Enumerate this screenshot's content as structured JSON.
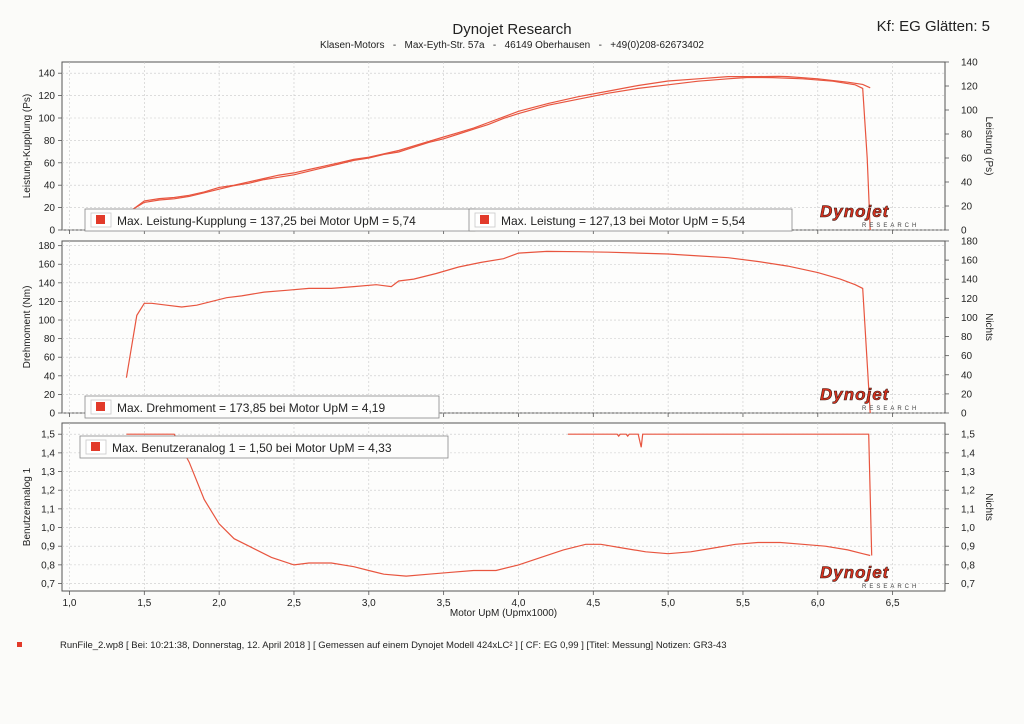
{
  "header": {
    "title": "Dynojet Research",
    "address": {
      "company": "Klasen-Motors",
      "street": "Max-Eyth-Str. 57a",
      "city": "46149 Oberhausen",
      "phone": "+49(0)208-62673402",
      "separator": "-"
    },
    "smoothing": "Kf: EG Glätten: 5"
  },
  "logo": {
    "brand": "Dynojet",
    "sub": "RESEARCH"
  },
  "footer": {
    "text": "RunFile_2.wp8 [ Bei: 10:21:38, Donnerstag, 12. April 2018 ] [ Gemessen auf einem Dynojet Modell 424xLC² ] [ CF: EG 0,99 ] [Titel: Messung]  Notizen: GR3-43"
  },
  "colors": {
    "curve": "#e8553f",
    "grid": "#c8c8c8",
    "legendMarker": "#e23a2a"
  },
  "chart_data": [
    {
      "type": "line",
      "ylabel": "Leistung-Kupplung (Ps)",
      "ylabel_right": "Leistung (Ps)",
      "ylim": [
        0,
        150
      ],
      "yticks_left": [
        "0",
        "20",
        "40",
        "60",
        "80",
        "100",
        "120",
        "140"
      ],
      "ylim_right": [
        0,
        140
      ],
      "yticks_right": [
        "0",
        "20",
        "40",
        "60",
        "80",
        "100",
        "120",
        "140"
      ],
      "legend": [
        "Max. Leistung-Kupplung = 137,25 bei Motor UpM = 5,74",
        "Max. Leistung = 127,13 bei Motor UpM = 5,54"
      ],
      "series": [
        {
          "axis": "left",
          "x": [
            1.32,
            1.42,
            1.5,
            1.6,
            1.7,
            1.8,
            1.9,
            2.0,
            2.1,
            2.2,
            2.3,
            2.4,
            2.5,
            2.6,
            2.7,
            2.8,
            2.9,
            3.0,
            3.1,
            3.2,
            3.3,
            3.4,
            3.5,
            3.6,
            3.7,
            3.8,
            3.9,
            4.0,
            4.2,
            4.4,
            4.6,
            4.8,
            5.0,
            5.2,
            5.4,
            5.6,
            5.74,
            5.8,
            6.0,
            6.2,
            6.3,
            6.35
          ],
          "y": [
            0,
            18,
            26,
            28,
            29,
            31,
            34,
            38,
            40,
            43,
            46,
            49,
            51,
            54,
            57,
            60,
            63,
            65,
            68,
            71,
            75,
            79,
            83,
            87,
            91,
            96,
            101,
            106,
            113,
            119,
            124,
            129,
            133,
            135,
            137,
            137,
            137.25,
            137,
            135,
            132,
            130,
            127
          ]
        },
        {
          "axis": "right",
          "x": [
            1.32,
            1.42,
            1.5,
            1.6,
            1.7,
            1.8,
            1.9,
            2.0,
            2.1,
            2.2,
            2.3,
            2.4,
            2.5,
            2.6,
            2.7,
            2.8,
            2.9,
            3.0,
            3.1,
            3.2,
            3.3,
            3.4,
            3.5,
            3.6,
            3.7,
            3.8,
            3.9,
            4.0,
            4.2,
            4.4,
            4.6,
            4.8,
            5.0,
            5.2,
            5.4,
            5.54,
            5.7,
            5.9,
            6.1,
            6.25,
            6.3,
            6.33,
            6.35
          ],
          "y": [
            0,
            17,
            23,
            25,
            26,
            28,
            31,
            34,
            37,
            39,
            42,
            44,
            46,
            49,
            52,
            55,
            58,
            60,
            63,
            65,
            69,
            73,
            76,
            80,
            84,
            88,
            93,
            97,
            104,
            109,
            114,
            118,
            121,
            124,
            126,
            127.13,
            127,
            126,
            124,
            121,
            118,
            60,
            0
          ]
        }
      ]
    },
    {
      "type": "line",
      "ylabel": "Drehmoment (Nm)",
      "ylabel_right": "Nichts",
      "ylim": [
        0,
        185
      ],
      "yticks_left": [
        "0",
        "20",
        "40",
        "60",
        "80",
        "100",
        "120",
        "140",
        "160",
        "180"
      ],
      "ylim_right": [
        0,
        180
      ],
      "yticks_right": [
        "0",
        "20",
        "40",
        "60",
        "80",
        "100",
        "120",
        "140",
        "160",
        "180"
      ],
      "legend": [
        "Max. Drehmoment = 173,85 bei Motor UpM = 4,19"
      ],
      "series": [
        {
          "axis": "left",
          "x": [
            1.38,
            1.45,
            1.5,
            1.55,
            1.65,
            1.75,
            1.85,
            1.95,
            2.05,
            2.15,
            2.3,
            2.45,
            2.6,
            2.75,
            2.9,
            3.05,
            3.15,
            3.2,
            3.3,
            3.45,
            3.6,
            3.75,
            3.9,
            4.0,
            4.19,
            4.4,
            4.6,
            4.8,
            5.0,
            5.2,
            5.4,
            5.6,
            5.8,
            6.0,
            6.15,
            6.25,
            6.3,
            6.35
          ],
          "y": [
            38,
            105,
            118,
            118,
            116,
            114,
            116,
            120,
            124,
            126,
            130,
            132,
            134,
            134,
            136,
            138,
            136,
            142,
            144,
            150,
            157,
            162,
            166,
            172,
            173.85,
            173.5,
            173,
            172,
            171,
            169,
            167,
            163,
            158,
            151,
            144,
            138,
            134,
            0
          ]
        }
      ]
    },
    {
      "type": "line",
      "ylabel": "Benutzeranalog 1",
      "ylabel_right": "Nichts",
      "xlabel": "Motor UpM (Upmx1000)",
      "xlim": [
        0.95,
        6.85
      ],
      "xticks": [
        "1,0",
        "1,5",
        "2,0",
        "2,5",
        "3,0",
        "3,5",
        "4,0",
        "4,5",
        "5,0",
        "5,5",
        "6,0",
        "6,5"
      ],
      "ylim": [
        0.66,
        1.56
      ],
      "yticks_left": [
        "0,7",
        "0,8",
        "0,9",
        "1,0",
        "1,1",
        "1,2",
        "1,3",
        "1,4",
        "1,5"
      ],
      "ylim_right": [
        0.66,
        1.56
      ],
      "yticks_right": [
        "0,7",
        "0,8",
        "0,9",
        "1,0",
        "1,1",
        "1,2",
        "1,3",
        "1,4",
        "1,5"
      ],
      "legend": [
        "Max. Benutzeranalog 1 = 1,50 bei Motor UpM = 4,33"
      ],
      "series": [
        {
          "axis": "left",
          "x": [
            1.38,
            1.55,
            1.7,
            1.8,
            1.9,
            2.0,
            2.1,
            2.2,
            2.35,
            2.5,
            2.6,
            2.75,
            2.9,
            3.0,
            3.1,
            3.25,
            3.4,
            3.55,
            3.7,
            3.85,
            4.0,
            4.15,
            4.3,
            4.45,
            4.55,
            4.7,
            4.85,
            5.0,
            5.15,
            5.3,
            5.45,
            5.6,
            5.75,
            5.9,
            6.05,
            6.2,
            6.3,
            6.35
          ],
          "y": [
            1.5,
            1.5,
            1.5,
            1.35,
            1.15,
            1.02,
            0.94,
            0.9,
            0.84,
            0.8,
            0.81,
            0.81,
            0.79,
            0.77,
            0.75,
            0.74,
            0.75,
            0.76,
            0.77,
            0.77,
            0.8,
            0.84,
            0.88,
            0.91,
            0.91,
            0.89,
            0.87,
            0.86,
            0.87,
            0.89,
            0.91,
            0.92,
            0.92,
            0.91,
            0.9,
            0.88,
            0.86,
            0.85
          ]
        },
        {
          "axis": "right",
          "x": [
            4.33,
            4.6,
            4.66,
            4.67,
            4.68,
            4.72,
            4.73,
            4.74,
            4.8,
            4.82,
            4.83,
            4.84,
            5.0,
            5.5,
            6.0,
            6.34,
            6.36
          ],
          "y": [
            1.5,
            1.5,
            1.5,
            1.49,
            1.5,
            1.5,
            1.49,
            1.5,
            1.5,
            1.43,
            1.5,
            1.5,
            1.5,
            1.5,
            1.5,
            1.5,
            0.85
          ]
        }
      ]
    }
  ]
}
